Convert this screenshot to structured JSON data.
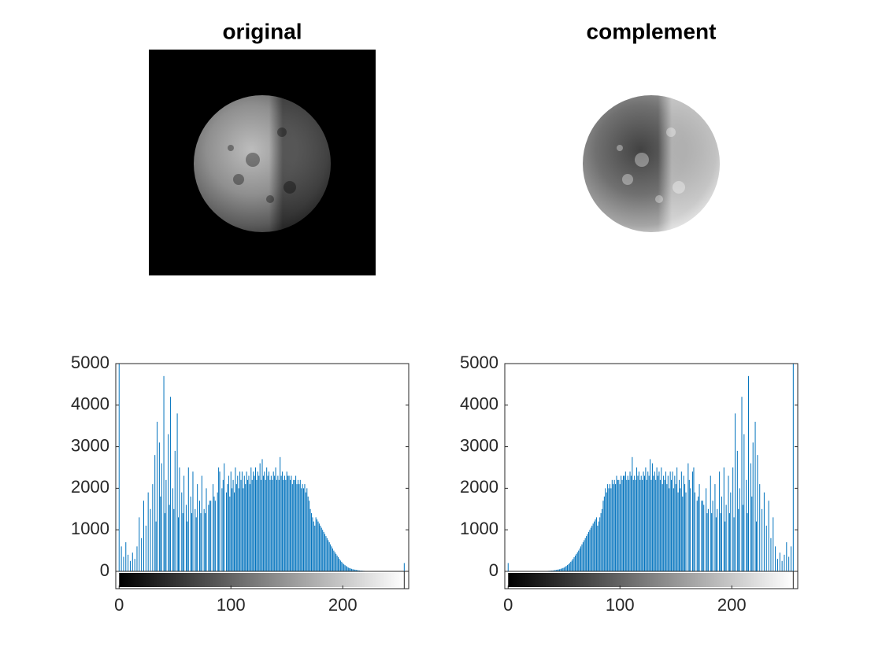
{
  "chart_data": [
    {
      "type": "image",
      "title": "original"
    },
    {
      "type": "image",
      "title": "complement"
    },
    {
      "type": "stem",
      "color": "#0072bd",
      "xlim": [
        -3,
        259
      ],
      "ylim": [
        0,
        5000
      ],
      "xticks": [
        0,
        100,
        200
      ],
      "yticks": [
        0,
        1000,
        2000,
        3000,
        4000,
        5000
      ],
      "x": [
        0,
        1,
        2,
        3,
        4,
        5,
        6,
        7,
        8,
        9,
        10,
        11,
        12,
        13,
        14,
        15,
        16,
        17,
        18,
        19,
        20,
        21,
        22,
        23,
        24,
        25,
        26,
        27,
        28,
        29,
        30,
        31,
        32,
        33,
        34,
        35,
        36,
        37,
        38,
        39,
        40,
        41,
        42,
        43,
        44,
        45,
        46,
        47,
        48,
        49,
        50,
        51,
        52,
        53,
        54,
        55,
        56,
        57,
        58,
        59,
        60,
        61,
        62,
        63,
        64,
        65,
        66,
        67,
        68,
        69,
        70,
        71,
        72,
        73,
        74,
        75,
        76,
        77,
        78,
        79,
        80,
        81,
        82,
        83,
        84,
        85,
        86,
        87,
        88,
        89,
        90,
        91,
        92,
        93,
        94,
        95,
        96,
        97,
        98,
        99,
        100,
        101,
        102,
        103,
        104,
        105,
        106,
        107,
        108,
        109,
        110,
        111,
        112,
        113,
        114,
        115,
        116,
        117,
        118,
        119,
        120,
        121,
        122,
        123,
        124,
        125,
        126,
        127,
        128,
        129,
        130,
        131,
        132,
        133,
        134,
        135,
        136,
        137,
        138,
        139,
        140,
        141,
        142,
        143,
        144,
        145,
        146,
        147,
        148,
        149,
        150,
        151,
        152,
        153,
        154,
        155,
        156,
        157,
        158,
        159,
        160,
        161,
        162,
        163,
        164,
        165,
        166,
        167,
        168,
        169,
        170,
        171,
        172,
        173,
        174,
        175,
        176,
        177,
        178,
        179,
        180,
        181,
        182,
        183,
        184,
        185,
        186,
        187,
        188,
        189,
        190,
        191,
        192,
        193,
        194,
        195,
        196,
        197,
        198,
        199,
        200,
        201,
        202,
        203,
        204,
        205,
        206,
        207,
        208,
        209,
        210,
        211,
        212,
        213,
        214,
        215,
        216,
        217,
        218,
        219,
        220,
        221,
        222,
        223,
        224,
        225,
        226,
        227,
        228,
        229,
        230,
        231,
        232,
        233,
        234,
        235,
        236,
        237,
        238,
        239,
        240,
        241,
        242,
        243,
        244,
        245,
        246,
        247,
        248,
        249,
        250,
        251,
        252,
        253,
        254,
        255
      ],
      "values": [
        5000,
        0,
        600,
        0,
        350,
        0,
        700,
        0,
        400,
        0,
        250,
        0,
        450,
        0,
        300,
        0,
        600,
        0,
        1300,
        0,
        800,
        0,
        1700,
        0,
        1100,
        0,
        1900,
        0,
        1500,
        0,
        2100,
        0,
        2800,
        1200,
        3600,
        0,
        3100,
        1800,
        2600,
        0,
        4700,
        1400,
        2200,
        0,
        3300,
        1600,
        4200,
        0,
        2000,
        1500,
        2900,
        0,
        3800,
        1300,
        2500,
        0,
        1900,
        1400,
        2300,
        0,
        1600,
        1200,
        2500,
        0,
        1800,
        1400,
        2400,
        0,
        1500,
        1300,
        2100,
        0,
        1700,
        1400,
        2300,
        0,
        1500,
        1400,
        2000,
        0,
        1600,
        1700,
        1700,
        0,
        2100,
        1800,
        1700,
        0,
        1900,
        2500,
        2400,
        0,
        2000,
        2200,
        2600,
        0,
        1900,
        2100,
        2300,
        1800,
        2400,
        2000,
        2200,
        1900,
        2500,
        2100,
        2300,
        2000,
        2400,
        2200,
        2400,
        2000,
        2300,
        2100,
        2400,
        2200,
        2300,
        2100,
        2500,
        2200,
        2400,
        2300,
        2500,
        2200,
        2400,
        2300,
        2600,
        2200,
        2700,
        2300,
        2400,
        2200,
        2500,
        2300,
        2400,
        2200,
        2300,
        2200,
        2400,
        2300,
        2500,
        2200,
        2300,
        2200,
        2750,
        2300,
        2400,
        2200,
        2300,
        2200,
        2400,
        2300,
        2300,
        2200,
        2300,
        2100,
        2200,
        2200,
        2300,
        2100,
        2200,
        2100,
        2200,
        2000,
        2100,
        2000,
        2100,
        1900,
        2000,
        1800,
        1700,
        1500,
        1400,
        1300,
        1200,
        1100,
        1300,
        1250,
        1200,
        1150,
        1100,
        1050,
        1000,
        950,
        900,
        850,
        800,
        750,
        700,
        650,
        600,
        550,
        500,
        460,
        420,
        380,
        340,
        300,
        260,
        230,
        200,
        170,
        150,
        130,
        110,
        90,
        80,
        70,
        60,
        50,
        45,
        40,
        35,
        30,
        25,
        20,
        18,
        16,
        14,
        12,
        10,
        9,
        8,
        7,
        6,
        5,
        5,
        4,
        4,
        3,
        3,
        2,
        2,
        2,
        1,
        1,
        1,
        1,
        0,
        0,
        0,
        0,
        0,
        0,
        0,
        0,
        0,
        0,
        0,
        0,
        0,
        0,
        0,
        0,
        0,
        200
      ]
    },
    {
      "type": "stem",
      "color": "#0072bd",
      "xlim": [
        -3,
        259
      ],
      "ylim": [
        0,
        5000
      ],
      "xticks": [
        0,
        100,
        200
      ],
      "yticks": [
        0,
        1000,
        2000,
        3000,
        4000,
        5000
      ],
      "x": [
        0,
        1,
        2,
        3,
        4,
        5,
        6,
        7,
        8,
        9,
        10,
        11,
        12,
        13,
        14,
        15,
        16,
        17,
        18,
        19,
        20,
        21,
        22,
        23,
        24,
        25,
        26,
        27,
        28,
        29,
        30,
        31,
        32,
        33,
        34,
        35,
        36,
        37,
        38,
        39,
        40,
        41,
        42,
        43,
        44,
        45,
        46,
        47,
        48,
        49,
        50,
        51,
        52,
        53,
        54,
        55,
        56,
        57,
        58,
        59,
        60,
        61,
        62,
        63,
        64,
        65,
        66,
        67,
        68,
        69,
        70,
        71,
        72,
        73,
        74,
        75,
        76,
        77,
        78,
        79,
        80,
        81,
        82,
        83,
        84,
        85,
        86,
        87,
        88,
        89,
        90,
        91,
        92,
        93,
        94,
        95,
        96,
        97,
        98,
        99,
        100,
        101,
        102,
        103,
        104,
        105,
        106,
        107,
        108,
        109,
        110,
        111,
        112,
        113,
        114,
        115,
        116,
        117,
        118,
        119,
        120,
        121,
        122,
        123,
        124,
        125,
        126,
        127,
        128,
        129,
        130,
        131,
        132,
        133,
        134,
        135,
        136,
        137,
        138,
        139,
        140,
        141,
        142,
        143,
        144,
        145,
        146,
        147,
        148,
        149,
        150,
        151,
        152,
        153,
        154,
        155,
        156,
        157,
        158,
        159,
        160,
        161,
        162,
        163,
        164,
        165,
        166,
        167,
        168,
        169,
        170,
        171,
        172,
        173,
        174,
        175,
        176,
        177,
        178,
        179,
        180,
        181,
        182,
        183,
        184,
        185,
        186,
        187,
        188,
        189,
        190,
        191,
        192,
        193,
        194,
        195,
        196,
        197,
        198,
        199,
        200,
        201,
        202,
        203,
        204,
        205,
        206,
        207,
        208,
        209,
        210,
        211,
        212,
        213,
        214,
        215,
        216,
        217,
        218,
        219,
        220,
        221,
        222,
        223,
        224,
        225,
        226,
        227,
        228,
        229,
        230,
        231,
        232,
        233,
        234,
        235,
        236,
        237,
        238,
        239,
        240,
        241,
        242,
        243,
        244,
        245,
        246,
        247,
        248,
        249,
        250,
        251,
        252,
        253,
        254,
        255
      ],
      "values": [
        200,
        0,
        0,
        0,
        0,
        0,
        0,
        0,
        0,
        0,
        0,
        0,
        0,
        0,
        0,
        0,
        0,
        0,
        1,
        1,
        1,
        1,
        2,
        2,
        2,
        3,
        3,
        4,
        4,
        5,
        5,
        6,
        7,
        8,
        9,
        10,
        12,
        14,
        16,
        18,
        20,
        25,
        30,
        35,
        40,
        45,
        50,
        60,
        70,
        80,
        90,
        110,
        130,
        150,
        170,
        200,
        230,
        260,
        300,
        340,
        380,
        420,
        460,
        500,
        550,
        600,
        650,
        700,
        750,
        800,
        850,
        900,
        950,
        1000,
        1050,
        1100,
        1150,
        1200,
        1250,
        1300,
        1100,
        1200,
        1300,
        1400,
        1500,
        1700,
        1800,
        2000,
        1900,
        2100,
        2000,
        2100,
        2000,
        2200,
        2100,
        2200,
        2100,
        2300,
        2200,
        2200,
        2100,
        2300,
        2200,
        2300,
        2300,
        2400,
        2200,
        2300,
        2200,
        2400,
        2300,
        2750,
        2200,
        2300,
        2200,
        2500,
        2300,
        2400,
        2200,
        2300,
        2200,
        2400,
        2300,
        2500,
        2200,
        2400,
        2300,
        2700,
        2200,
        2600,
        2300,
        2400,
        2200,
        2500,
        2300,
        2400,
        2200,
        2500,
        2100,
        2300,
        2200,
        2400,
        2100,
        2300,
        2000,
        2400,
        2200,
        2400,
        2000,
        2300,
        2100,
        2500,
        1900,
        2200,
        2000,
        2400,
        1800,
        2300,
        2100,
        1900,
        0,
        2600,
        2200,
        2000,
        0,
        2400,
        2500,
        1900,
        0,
        1700,
        1800,
        2100,
        0,
        1700,
        1700,
        1600,
        0,
        2000,
        1400,
        1500,
        0,
        2300,
        1400,
        1700,
        0,
        2100,
        1300,
        1500,
        0,
        2400,
        1400,
        1800,
        0,
        2500,
        1200,
        1600,
        0,
        2300,
        1400,
        1900,
        0,
        2500,
        1300,
        3800,
        0,
        2900,
        1500,
        2000,
        0,
        4200,
        1600,
        3300,
        0,
        2200,
        1400,
        4700,
        0,
        2600,
        1800,
        3100,
        0,
        3600,
        1200,
        2800,
        0,
        2100,
        0,
        1500,
        0,
        1900,
        0,
        1100,
        0,
        1700,
        0,
        800,
        0,
        1300,
        0,
        600,
        0,
        300,
        0,
        450,
        0,
        250,
        0,
        400,
        0,
        700,
        0,
        350,
        0,
        600,
        0,
        5000
      ]
    }
  ]
}
